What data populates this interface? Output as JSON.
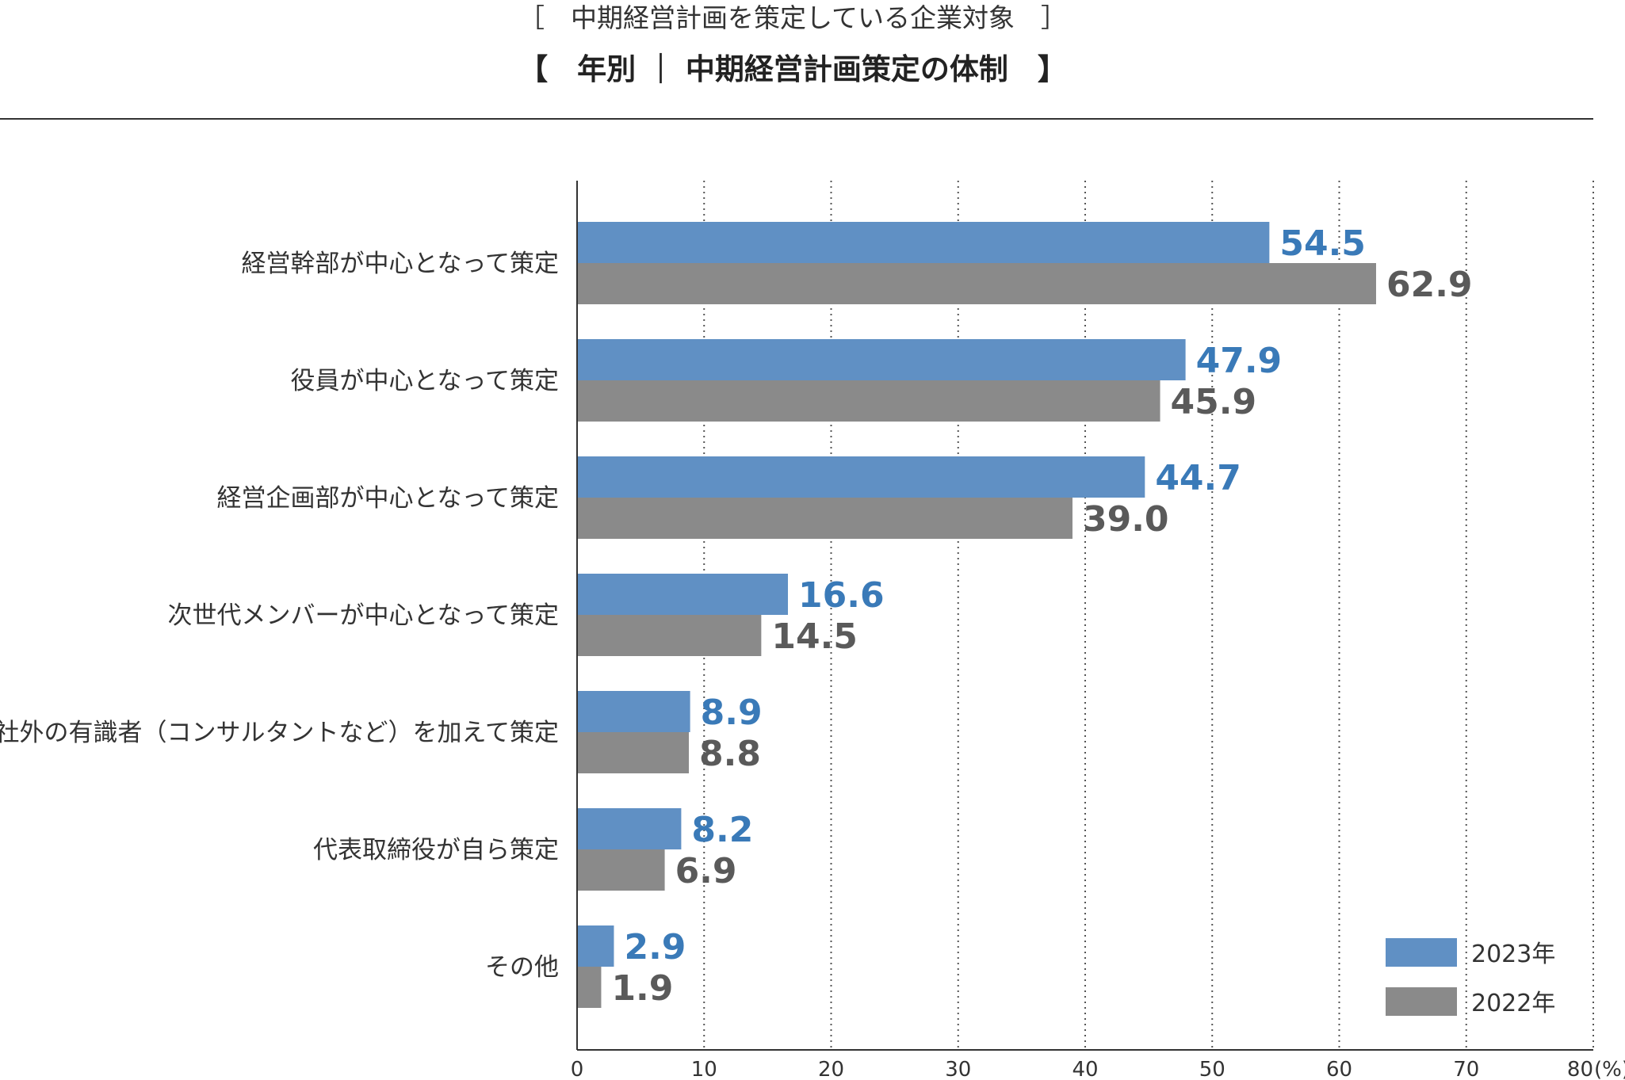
{
  "chart_data": {
    "type": "bar",
    "orientation": "horizontal",
    "subtitle": "［　中期経営計画を策定している企業対象　］",
    "title": "【　年別 ｜ 中期経営計画策定の体制　】",
    "unit": "(%)",
    "categories": [
      "経営幹部が中心となって策定",
      "役員が中心となって策定",
      "経営企画部が中心となって策定",
      "次世代メンバーが中心となって策定",
      "社外の有識者（コンサルタントなど）を加えて策定",
      "代表取締役が自ら策定",
      "その他"
    ],
    "series": [
      {
        "name": "2023年",
        "values": [
          54.5,
          47.9,
          44.7,
          16.6,
          8.9,
          8.2,
          2.9
        ],
        "value_labels": [
          "54.5",
          "47.9",
          "44.7",
          "16.6",
          "8.9",
          "8.2",
          "2.9"
        ],
        "color": "#6090c4",
        "label_color": "#3a7ab8"
      },
      {
        "name": "2022年",
        "values": [
          62.9,
          45.9,
          39.0,
          14.5,
          8.8,
          6.9,
          1.9
        ],
        "value_labels": [
          "62.9",
          "45.9",
          "39.0",
          "14.5",
          "8.8",
          "6.9",
          "1.9"
        ],
        "color": "#8a8a8a",
        "label_color": "#5a5a5a"
      }
    ],
    "xlim": [
      0,
      80
    ],
    "xticks": [
      "0",
      "10",
      "20",
      "30",
      "40",
      "50",
      "60",
      "70",
      "80"
    ],
    "grid": "vertical-dotted",
    "legend_position": "bottom-right"
  }
}
